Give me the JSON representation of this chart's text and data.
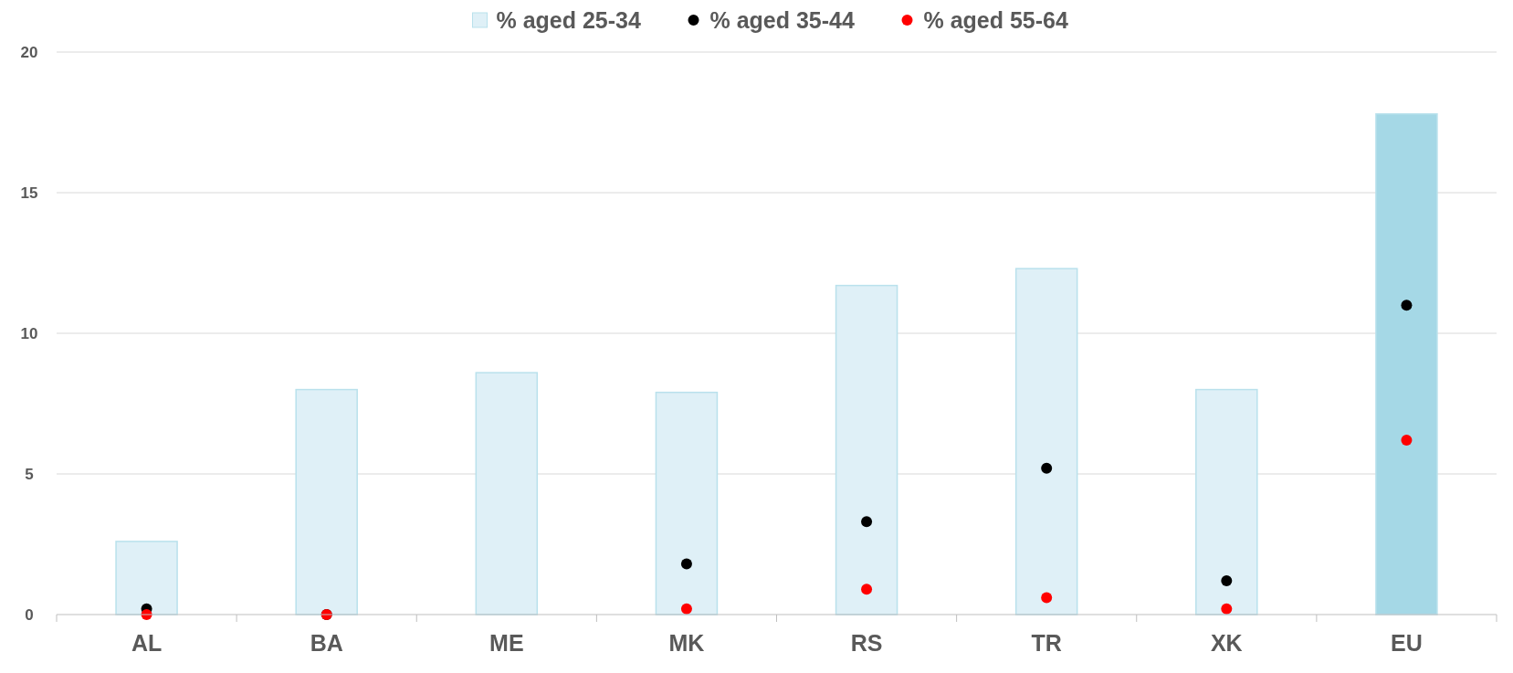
{
  "chart_data": {
    "type": "bar",
    "categories": [
      "AL",
      "BA",
      "ME",
      "MK",
      "RS",
      "TR",
      "XK",
      "EU"
    ],
    "series": [
      {
        "name": "% aged 25-34",
        "color": "#dff0f7",
        "colors": [
          "#dff0f7",
          "#dff0f7",
          "#dff0f7",
          "#dff0f7",
          "#dff0f7",
          "#dff0f7",
          "#dff0f7",
          "#a5d8e6"
        ],
        "values": [
          2.6,
          8.0,
          8.6,
          7.9,
          11.7,
          12.3,
          8.0,
          17.8
        ]
      },
      {
        "name": "% aged 35-44",
        "type": "scatter",
        "color": "#000000",
        "values": [
          0.2,
          0,
          null,
          1.8,
          3.3,
          5.2,
          1.2,
          11.0
        ]
      },
      {
        "name": "% aged 55-64",
        "type": "scatter",
        "color": "#ff0000",
        "values": [
          0,
          0,
          null,
          0.2,
          0.9,
          0.6,
          0.2,
          6.2
        ]
      }
    ],
    "ylim": [
      0,
      20
    ],
    "yticks": [
      0,
      5,
      10,
      15,
      20
    ],
    "grid": "y",
    "legend": "top",
    "marker": "circle"
  }
}
